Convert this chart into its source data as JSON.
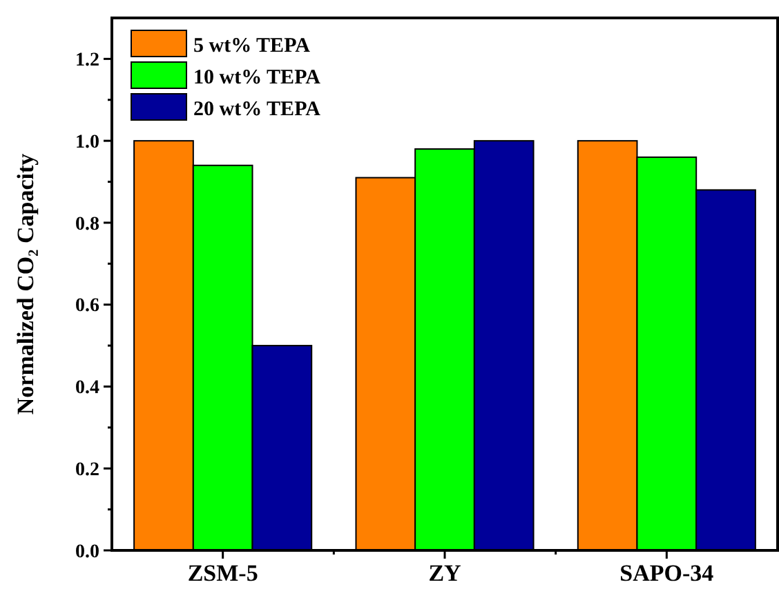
{
  "chart_data": {
    "type": "bar",
    "ylabel": "Normalized CO₂ Capacity",
    "categories": [
      "ZSM-5",
      "ZY",
      "SAPO-34"
    ],
    "series": [
      {
        "name": "5 wt% TEPA",
        "color": "#ff8000",
        "values": [
          1.0,
          0.91,
          1.0
        ]
      },
      {
        "name": "10 wt% TEPA",
        "color": "#00ff00",
        "values": [
          0.94,
          0.98,
          0.96
        ]
      },
      {
        "name": "20 wt% TEPA",
        "color": "#000099",
        "values": [
          0.5,
          1.0,
          0.88
        ]
      }
    ],
    "ylim": [
      0,
      1.3
    ],
    "yticks": [
      {
        "value": 0,
        "label": "0.0"
      },
      {
        "value": 0.1,
        "label": null
      },
      {
        "value": 0.2,
        "label": "0.2"
      },
      {
        "value": 0.3,
        "label": null
      },
      {
        "value": 0.4,
        "label": "0.4"
      },
      {
        "value": 0.5,
        "label": null
      },
      {
        "value": 0.6,
        "label": "0.6"
      },
      {
        "value": 0.7,
        "label": null
      },
      {
        "value": 0.8,
        "label": "0.8"
      },
      {
        "value": 0.9,
        "label": null
      },
      {
        "value": 1.0,
        "label": "1.0"
      },
      {
        "value": 1.1,
        "label": null
      },
      {
        "value": 1.2,
        "label": "1.2"
      }
    ],
    "legend": "top left",
    "grid": false
  }
}
